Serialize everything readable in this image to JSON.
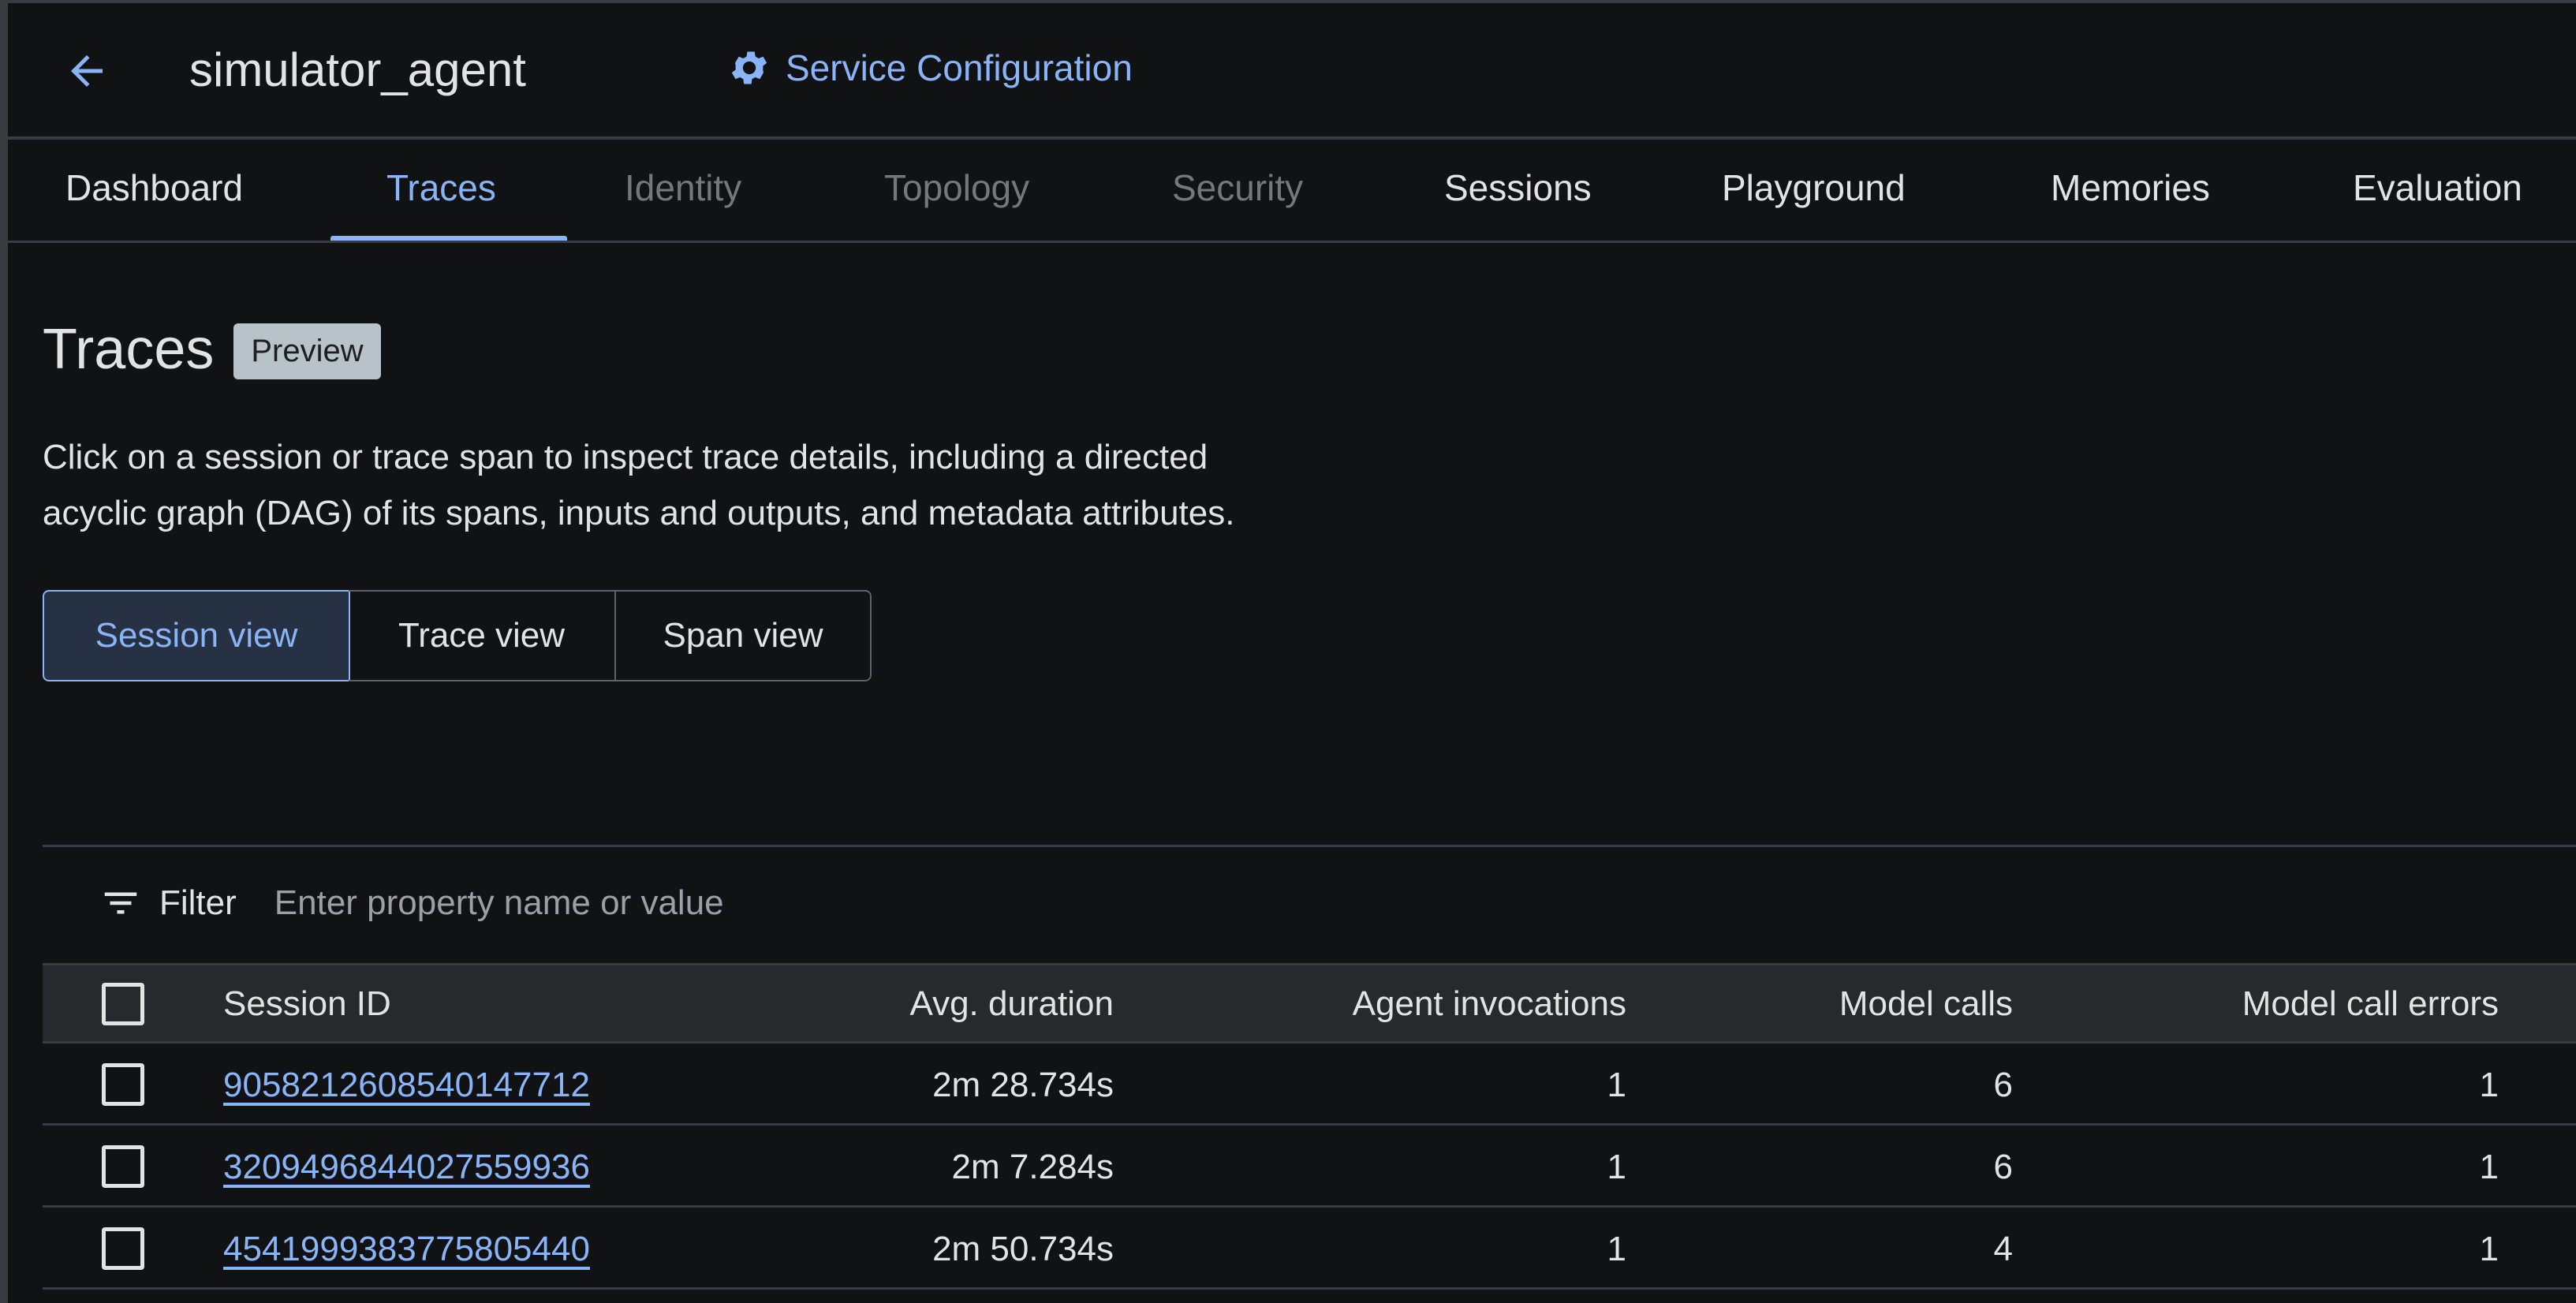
{
  "header": {
    "title": "simulator_agent",
    "service_config": "Service Configuration"
  },
  "tabs": [
    {
      "label": "Dashboard",
      "state": "enabled"
    },
    {
      "label": "Traces",
      "state": "active"
    },
    {
      "label": "Identity",
      "state": "disabled"
    },
    {
      "label": "Topology",
      "state": "disabled"
    },
    {
      "label": "Security",
      "state": "disabled"
    },
    {
      "label": "Sessions",
      "state": "enabled"
    },
    {
      "label": "Playground",
      "state": "enabled"
    },
    {
      "label": "Memories",
      "state": "enabled"
    },
    {
      "label": "Evaluation",
      "state": "enabled"
    }
  ],
  "page": {
    "title": "Traces",
    "badge": "Preview",
    "description_line1": "Click on a session or trace span to inspect trace details, including a directed",
    "description_line2": "acyclic graph (DAG) of its spans, inputs and outputs, and metadata attributes."
  },
  "views": {
    "session": "Session view",
    "trace": "Trace view",
    "span": "Span view",
    "selected": "Session view"
  },
  "filter": {
    "label": "Filter",
    "placeholder": "Enter property name or value"
  },
  "table": {
    "columns": [
      "Session ID",
      "Avg. duration",
      "Agent invocations",
      "Model calls",
      "Model call errors"
    ],
    "rows": [
      [
        "9058212608540147712",
        "2m 28.734s",
        "1",
        "6",
        "1"
      ],
      [
        "3209496844027559936",
        "2m 7.284s",
        "1",
        "6",
        "1"
      ],
      [
        "4541999383775805440",
        "2m 50.734s",
        "1",
        "4",
        "1"
      ]
    ]
  },
  "colors": {
    "accent": "#8ab4f8",
    "background": "#111214",
    "header_row": "#28292c"
  }
}
